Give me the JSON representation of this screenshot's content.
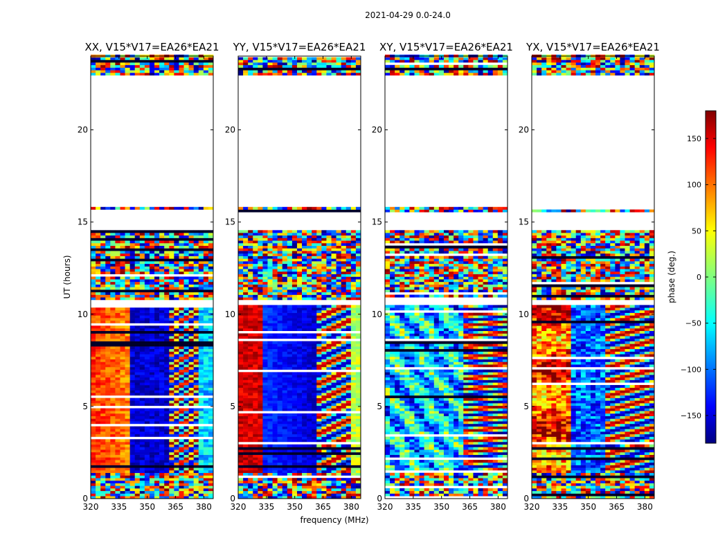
{
  "chart_data": {
    "type": "heatmap",
    "suptitle": "2021-04-29 0.0-24.0",
    "xlabel": "frequency (MHz)",
    "ylabel": "UT (hours)",
    "xlim": [
      320,
      385
    ],
    "ylim": [
      0,
      24
    ],
    "xticks": [
      320,
      335,
      350,
      365,
      380
    ],
    "yticks": [
      0,
      5,
      10,
      15,
      20
    ],
    "colorbar": {
      "label": "phase (deg.)",
      "range": [
        -180,
        180
      ],
      "ticks": [
        -150,
        -100,
        -50,
        0,
        50,
        100,
        150
      ],
      "colors": [
        "#000080",
        "#0000ff",
        "#0080ff",
        "#00ffff",
        "#80ff80",
        "#ffff00",
        "#ff8000",
        "#ff0000",
        "#800000"
      ]
    },
    "data_gaps_hours": [
      [
        10.8,
        10.5
      ],
      [
        15.6,
        14.6
      ],
      [
        22.9,
        15.8
      ]
    ],
    "panels": [
      {
        "title": "XX, V15*V17=EA26*EA21",
        "pattern": "xx"
      },
      {
        "title": "YY, V15*V17=EA26*EA21",
        "pattern": "yy"
      },
      {
        "title": "XY, V15*V17=EA26*EA21",
        "pattern": "xy"
      },
      {
        "title": "YX, V15*V17=EA26*EA21",
        "pattern": "yx"
      }
    ]
  }
}
